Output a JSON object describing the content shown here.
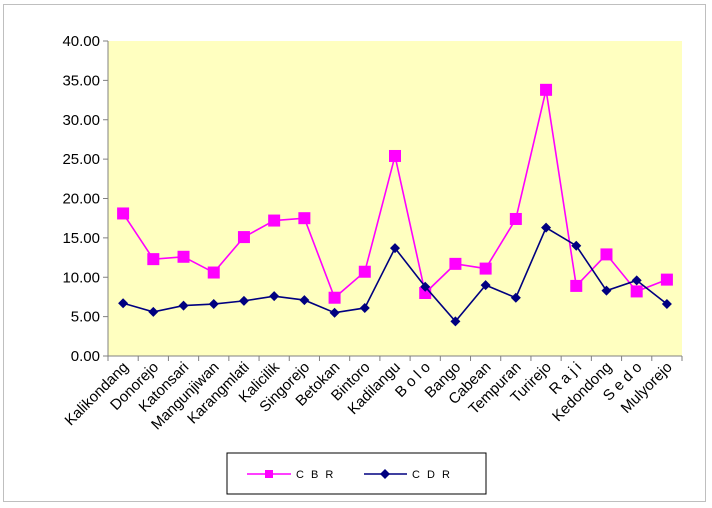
{
  "chart_data": {
    "type": "line",
    "title": "",
    "xlabel": "",
    "ylabel": "",
    "ylim": [
      0,
      40
    ],
    "y_ticks": [
      "0.00",
      "5.00",
      "10.00",
      "15.00",
      "20.00",
      "25.00",
      "30.00",
      "35.00",
      "40.00"
    ],
    "grid": false,
    "legend_position": "bottom",
    "plot_background": "#FFFFC0",
    "categories": [
      "Kalikondang",
      "Donorejo",
      "Katonsari",
      "Mangunjiwan",
      "Karangmlati",
      "Kalicilik",
      "Singorejo",
      "Betokan",
      "Bintoro",
      "Kadilangu",
      "B o l o",
      "Bango",
      "Cabean",
      "Tempuran",
      "Turirejo",
      "R a j i",
      "Kedondong",
      "S e d o",
      "Mulyorejo"
    ],
    "series": [
      {
        "name": "C B R",
        "color": "#FF00FF",
        "marker": "square",
        "values": [
          18.1,
          12.3,
          12.6,
          10.6,
          15.1,
          17.2,
          17.5,
          7.4,
          10.7,
          25.4,
          8.0,
          11.7,
          11.1,
          17.4,
          33.8,
          8.9,
          12.9,
          8.2,
          9.7
        ]
      },
      {
        "name": "C D R",
        "color": "#000080",
        "marker": "diamond",
        "values": [
          6.7,
          5.6,
          6.4,
          6.6,
          7.0,
          7.6,
          7.1,
          5.5,
          6.1,
          13.7,
          8.8,
          4.4,
          9.0,
          7.4,
          16.3,
          14.0,
          8.3,
          9.6,
          6.6
        ]
      }
    ]
  }
}
